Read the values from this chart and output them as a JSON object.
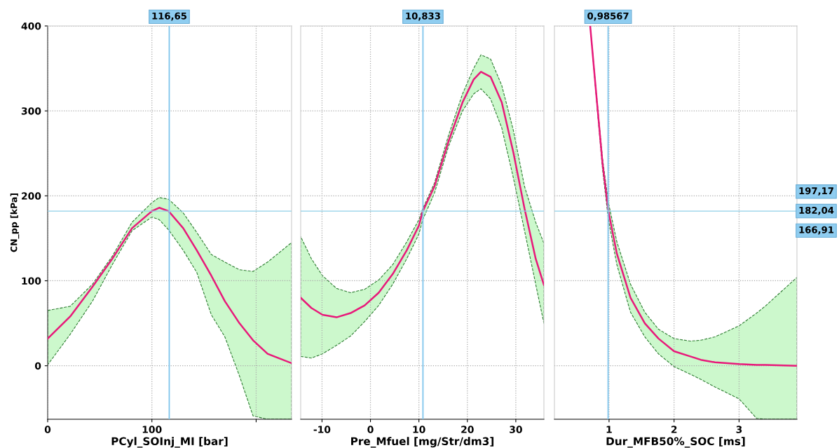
{
  "chart_data": [
    {
      "type": "line",
      "xlabel": "PCyl_SOInj_MI [bar]",
      "ylabel": "CN_pp [kPa]",
      "xlim": [
        0,
        234
      ],
      "xticks": [
        0,
        100,
        {
          "value": 200,
          "label": null
        }
      ],
      "ylim": [
        -63,
        400
      ],
      "yticks": [
        0,
        100,
        200,
        300,
        400
      ],
      "grid": true,
      "marker": "none",
      "line_style": "solid",
      "series": [
        {
          "color": "#e8197a",
          "x": [
            0,
            21.6,
            43,
            62,
            81,
            100,
            107,
            116,
            130,
            143,
            157,
            170,
            184,
            197,
            211,
            234
          ],
          "values": [
            32,
            58,
            93,
            126,
            162,
            182,
            186,
            182,
            162,
            136,
            106,
            76,
            50,
            30,
            14,
            3
          ],
          "upper": [
            65,
            70,
            96,
            129,
            169,
            192,
            198,
            196,
            180,
            157,
            131,
            122,
            113,
            111,
            122,
            145
          ],
          "lower": [
            1,
            37,
            76,
            119,
            159,
            175,
            172,
            160,
            136,
            110,
            60,
            34,
            -12,
            -59,
            -63,
            -63
          ]
        }
      ],
      "ref_lines": [
        {
          "axis": "x",
          "value": 116.65,
          "label": "116,65",
          "color": "#7ec4ec"
        },
        {
          "axis": "y",
          "value": 182.04,
          "color": "#8fd0e8"
        }
      ]
    },
    {
      "type": "line",
      "xlabel": "Pre_Mfuel [mg/Str/dm3]",
      "xlim": [
        -14.4,
        35.8
      ],
      "xticks": [
        -10,
        0,
        10,
        20,
        30
      ],
      "ylim": [
        -63,
        400
      ],
      "yticks": [
        0,
        100,
        200,
        300,
        400
      ],
      "grid": true,
      "tick_labels": "x",
      "marker": "none",
      "line_style": "solid",
      "series": [
        {
          "color": "#e8197a",
          "x": [
            -14.4,
            -12.2,
            -9.9,
            -7,
            -4.1,
            -1.2,
            1.7,
            4.6,
            7.5,
            10,
            10.8,
            13.2,
            16.1,
            19,
            21.3,
            22.8,
            24.8,
            27.1,
            29.5,
            31.8,
            34.1,
            35.8
          ],
          "values": [
            80,
            68,
            60,
            57,
            62,
            71,
            86,
            108,
            136,
            165,
            182,
            211,
            264,
            310,
            337,
            346,
            340,
            310,
            251,
            185,
            126,
            95
          ],
          "upper": [
            152,
            126,
            106,
            91,
            86,
            90,
            101,
            119,
            146,
            172,
            185,
            215,
            271,
            320,
            350,
            366,
            361,
            330,
            277,
            211,
            169,
            144
          ],
          "lower": [
            11,
            9,
            14,
            24,
            35,
            52,
            71,
            96,
            126,
            155,
            172,
            203,
            258,
            300,
            320,
            326,
            314,
            280,
            221,
            159,
            96,
            50
          ]
        }
      ],
      "ref_lines": [
        {
          "axis": "x",
          "value": 10.833,
          "label": "10,833",
          "color": "#7ec4ec"
        },
        {
          "axis": "y",
          "value": 182.04,
          "color": "#8fd0e8"
        }
      ]
    },
    {
      "type": "line",
      "xlabel": "Dur_MFB50%_SOC [ms]",
      "xlim": [
        0.16,
        3.89
      ],
      "xticks": [
        1,
        2,
        3
      ],
      "ylim": [
        -63,
        400
      ],
      "yticks": [
        0,
        100,
        200,
        300,
        400
      ],
      "grid": true,
      "tick_labels": "x",
      "marker": "none",
      "line_style": "solid",
      "series": [
        {
          "color": "#e8197a",
          "x": [
            0.71,
            0.81,
            0.9,
            0.99,
            1.12,
            1.33,
            1.55,
            1.76,
            2.0,
            2.25,
            2.41,
            2.63,
            3.0,
            3.27,
            3.4,
            3.89
          ],
          "values": [
            400,
            314,
            238,
            182,
            132,
            80,
            50,
            32,
            17,
            11,
            7,
            4,
            2,
            1,
            1,
            0
          ],
          "upper": [
            400,
            317,
            244,
            192,
            146,
            96,
            63,
            43,
            32,
            29,
            30,
            34,
            47,
            62,
            70,
            104
          ],
          "lower": [
            400,
            310,
            231,
            172,
            119,
            63,
            34,
            14,
            -1,
            -10,
            -16,
            -25,
            -39,
            -62,
            -63,
            -63
          ]
        }
      ],
      "ref_lines": [
        {
          "axis": "x",
          "value": 0.98567,
          "label": "0,98567",
          "color": "#7ec4ec"
        },
        {
          "axis": "y",
          "value": 182.04,
          "label": "182,04",
          "color": "#8fd0e8"
        }
      ],
      "annotations": [
        "197,17",
        "166,91"
      ]
    }
  ]
}
